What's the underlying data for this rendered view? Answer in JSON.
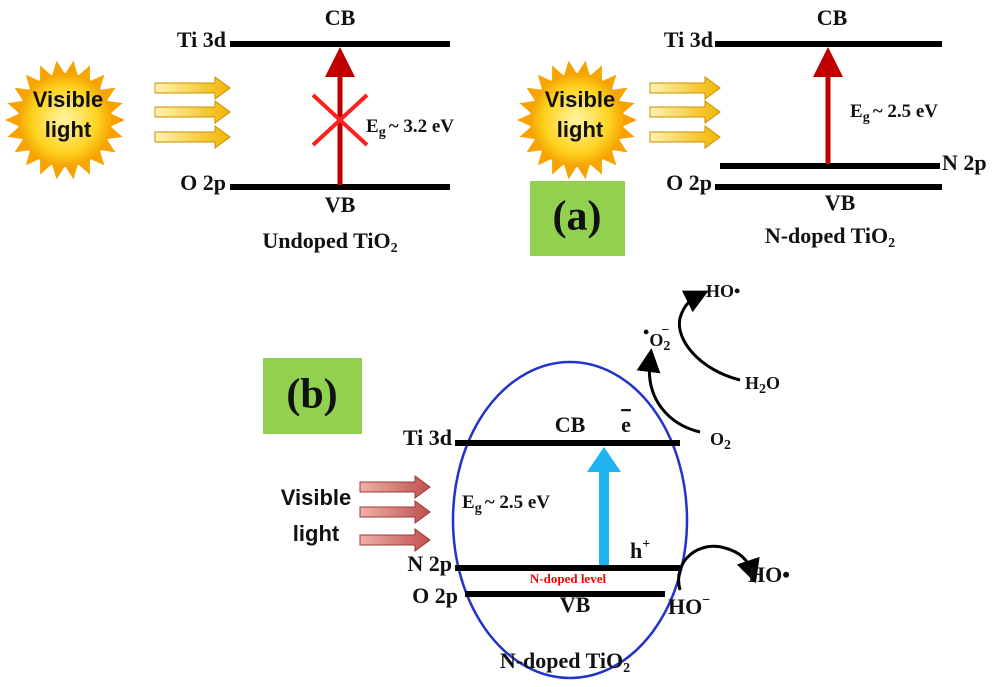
{
  "panel_a": {
    "label": "(a)",
    "undoped": {
      "upper_level": "Ti 3d",
      "cb": "CB",
      "light": [
        "Visible",
        "light"
      ],
      "gap": {
        "symbol": "E",
        "subscript": "g",
        "value": "~ 3.2 eV"
      },
      "lower_level": "O 2p",
      "vb": "VB",
      "caption": {
        "text": "Undoped TiO",
        "subscript": "2"
      }
    },
    "doped": {
      "upper_level": "Ti 3d",
      "cb": "CB",
      "light": [
        "Visible",
        "light"
      ],
      "gap": {
        "symbol": "E",
        "subscript": "g",
        "value": "~ 2.5 eV"
      },
      "dopant_level": "N 2p",
      "lower_level": "O 2p",
      "vb": "VB",
      "caption": {
        "text": "N-doped TiO",
        "subscript": "2"
      }
    }
  },
  "panel_b": {
    "label": "(b)",
    "upper_level": "Ti 3d",
    "cb": "CB",
    "electron": "e",
    "gap": {
      "symbol": "E",
      "subscript": "g",
      "value": "~ 2.5 eV"
    },
    "light": [
      "Visible",
      "light"
    ],
    "dopant_level": "N 2p",
    "dopant_note": "N-doped level",
    "lower_level": "O 2p",
    "vb": "VB",
    "hole": {
      "text": "h",
      "superscript": "+"
    },
    "hydroxyl_radical_1": "HO•",
    "hydroxide": {
      "text": "HO",
      "superscript": "−"
    },
    "oxygen": {
      "text": "O",
      "subscript": "2"
    },
    "superoxide": {
      "prefix": "•",
      "text": "O",
      "subscript": "2",
      "superscript": "−"
    },
    "water": {
      "text": "H",
      "subscript": "2",
      "tail": "O"
    },
    "hydroxyl_radical_2": "HO•",
    "caption": {
      "text": "N-doped TiO",
      "subscript": "2"
    }
  }
}
